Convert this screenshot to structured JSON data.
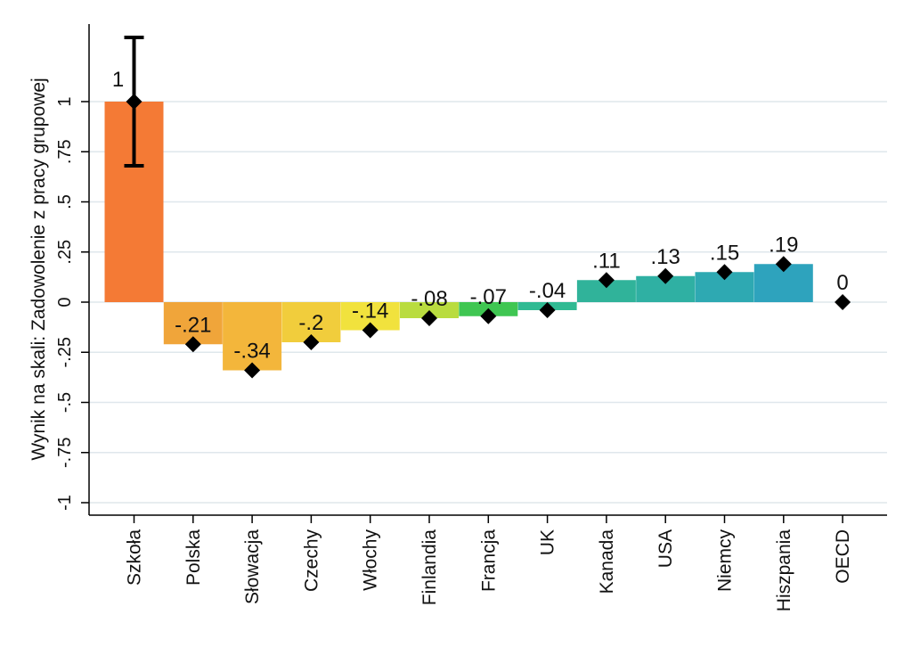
{
  "chart_data": {
    "type": "bar",
    "title": "",
    "xlabel": "",
    "ylabel": "Wynik na skali: Zadowolenie z pracy grupowej",
    "ylim": [
      -1.1,
      1.3
    ],
    "grid": true,
    "yticks": [
      {
        "value": 1,
        "label": "1"
      },
      {
        "value": 0.75,
        "label": ".75"
      },
      {
        "value": 0.5,
        "label": ".5"
      },
      {
        "value": 0.25,
        "label": ".25"
      },
      {
        "value": 0,
        "label": "0"
      },
      {
        "value": -0.25,
        "label": "-.25"
      },
      {
        "value": -0.5,
        "label": "-.5"
      },
      {
        "value": -0.75,
        "label": "-.75"
      },
      {
        "value": -1,
        "label": "-1"
      }
    ],
    "categories": [
      "Szkoła",
      "Polska",
      "Słowacja",
      "Czechy",
      "Włochy",
      "Finlandia",
      "Francja",
      "UK",
      "Kanada",
      "USA",
      "Niemcy",
      "Hiszpania",
      "OECD"
    ],
    "values": [
      1,
      -0.21,
      -0.34,
      -0.2,
      -0.14,
      -0.08,
      -0.07,
      -0.04,
      0.11,
      0.13,
      0.15,
      0.19,
      0
    ],
    "value_labels": [
      "1",
      "-.21",
      "-.34",
      "-.2",
      "-.14",
      "-.08",
      "-.07",
      "-.04",
      ".11",
      ".13",
      ".15",
      ".19",
      "0"
    ],
    "bar_colors": [
      "#f47a35",
      "#f0a53a",
      "#f3b63b",
      "#f1cd3c",
      "#f1e23d",
      "#b9dc3f",
      "#3fc652",
      "#30ba93",
      "#30b39a",
      "#2fb0a3",
      "#2ea9b2",
      "#2ea3bd",
      null
    ],
    "show_bar": [
      true,
      true,
      true,
      true,
      true,
      true,
      true,
      true,
      true,
      true,
      true,
      true,
      false
    ],
    "error_bars": [
      {
        "index": 0,
        "low": 0.68,
        "high": 1.32
      }
    ],
    "marker": "diamond",
    "marker_color": "#000000",
    "grid_color": "#dfe7ec",
    "axis_color": "#000000"
  }
}
